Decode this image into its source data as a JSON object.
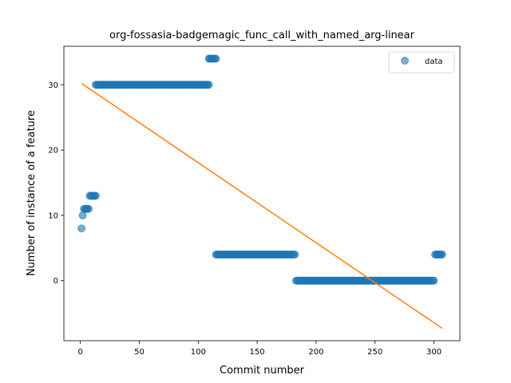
{
  "chart_data": {
    "type": "scatter",
    "title": "org-fossasia-badgemagic_func_call_with_named_arg-linear",
    "xlabel": "Commit number",
    "ylabel": "Number of instance of a feature",
    "xlim": [
      -14,
      322
    ],
    "ylim": [
      -9.2,
      35.9
    ],
    "xticks": [
      0,
      50,
      100,
      150,
      200,
      250,
      300
    ],
    "yticks": [
      0,
      10,
      20,
      30
    ],
    "grid": false,
    "legend": {
      "position": "top-right",
      "entries": [
        "data"
      ]
    },
    "colors": {
      "scatter": "#1f77b4",
      "fit_line": "#ff7f0e"
    },
    "series": [
      {
        "name": "data",
        "kind": "scatter",
        "segments": [
          {
            "x": [
              1
            ],
            "y": 8
          },
          {
            "x": [
              2
            ],
            "y": 10
          },
          {
            "x_start": 3,
            "x_end": 7,
            "y": 11
          },
          {
            "x_start": 8,
            "x_end": 13,
            "y": 13
          },
          {
            "x_start": 13,
            "x_end": 109,
            "y": 30
          },
          {
            "x_start": 109,
            "x_end": 115,
            "y": 34
          },
          {
            "x_start": 115,
            "x_end": 182,
            "y": 4
          },
          {
            "x_start": 183,
            "x_end": 300,
            "y": 0
          },
          {
            "x_start": 301,
            "x_end": 307,
            "y": 4
          }
        ]
      },
      {
        "kind": "line",
        "x": [
          1,
          307
        ],
        "y": [
          30.2,
          -7.3
        ]
      }
    ]
  }
}
